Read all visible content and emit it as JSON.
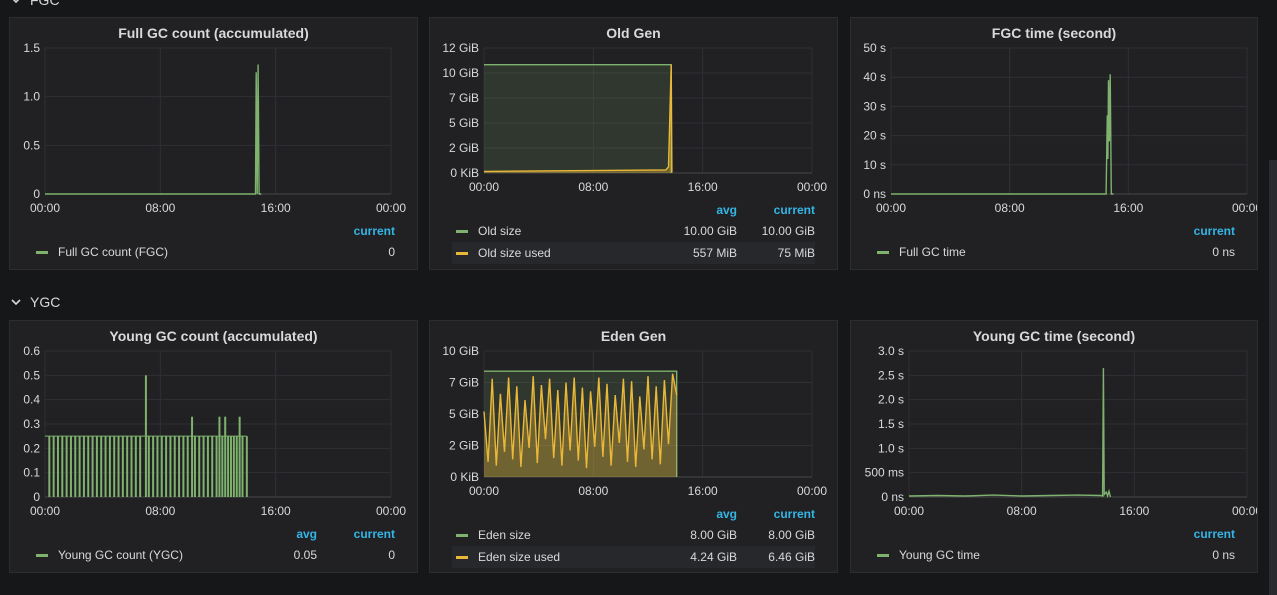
{
  "rows": [
    {
      "title": "FGC"
    },
    {
      "title": "YGC"
    }
  ],
  "colors": {
    "green": "#7eb26d",
    "yellow": "#eab839",
    "accent": "#33b5e5"
  },
  "x_ticks": [
    "00:00",
    "08:00",
    "16:00",
    "00:00"
  ],
  "panels": {
    "fgc_count": {
      "title": "Full GC count (accumulated)",
      "y_ticks": [
        "1.5",
        "1.0",
        "0.5",
        "0"
      ],
      "legend": {
        "headers": [
          "current"
        ],
        "rows": [
          {
            "name": "Full GC count (FGC)",
            "values": [
              "0"
            ],
            "color": "#7eb26d"
          }
        ]
      }
    },
    "old_gen": {
      "title": "Old Gen",
      "y_ticks": [
        "12 GiB",
        "10 GiB",
        "7 GiB",
        "5 GiB",
        "2 GiB",
        "0 KiB"
      ],
      "legend": {
        "headers": [
          "avg",
          "current"
        ],
        "rows": [
          {
            "name": "Old size",
            "values": [
              "10.00 GiB",
              "10.00 GiB"
            ],
            "color": "#7eb26d"
          },
          {
            "name": "Old size used",
            "values": [
              "557 MiB",
              "75 MiB"
            ],
            "color": "#eab839"
          }
        ]
      }
    },
    "fgc_time": {
      "title": "FGC time (second)",
      "y_ticks": [
        "50 s",
        "40 s",
        "30 s",
        "20 s",
        "10 s",
        "0 ns"
      ],
      "legend": {
        "headers": [
          "current"
        ],
        "rows": [
          {
            "name": "Full GC time",
            "values": [
              "0 ns"
            ],
            "color": "#7eb26d"
          }
        ]
      }
    },
    "ygc_count": {
      "title": "Young GC count (accumulated)",
      "y_ticks": [
        "0.6",
        "0.5",
        "0.4",
        "0.3",
        "0.2",
        "0.1",
        "0"
      ],
      "legend": {
        "headers": [
          "avg",
          "current"
        ],
        "rows": [
          {
            "name": "Young GC count (YGC)",
            "values": [
              "0.05",
              "0"
            ],
            "color": "#7eb26d"
          }
        ]
      }
    },
    "eden_gen": {
      "title": "Eden Gen",
      "y_ticks": [
        "10 GiB",
        "7 GiB",
        "5 GiB",
        "2 GiB",
        "0 KiB"
      ],
      "legend": {
        "headers": [
          "avg",
          "current"
        ],
        "rows": [
          {
            "name": "Eden size",
            "values": [
              "8.00 GiB",
              "8.00 GiB"
            ],
            "color": "#7eb26d"
          },
          {
            "name": "Eden size used",
            "values": [
              "4.24 GiB",
              "6.46 GiB"
            ],
            "color": "#eab839"
          }
        ]
      }
    },
    "ygc_time": {
      "title": "Young GC time (second)",
      "y_ticks": [
        "3.0 s",
        "2.5 s",
        "2.0 s",
        "1.5 s",
        "1.0 s",
        "500 ms",
        "0 ns"
      ],
      "legend": {
        "headers": [
          "current"
        ],
        "rows": [
          {
            "name": "Young GC time",
            "values": [
              "0 ns"
            ],
            "color": "#7eb26d"
          }
        ]
      }
    }
  },
  "chart_data": [
    {
      "id": "fgc_count",
      "type": "line",
      "title": "Full GC count (accumulated)",
      "ylim": [
        0,
        1.5
      ],
      "x_hours": [
        0,
        8,
        16,
        24
      ],
      "series": [
        {
          "name": "Full GC count (FGC)",
          "color": "#7eb26d",
          "points": [
            [
              0,
              0
            ],
            [
              14.6,
              0
            ],
            [
              14.65,
              1.25
            ],
            [
              14.72,
              0
            ],
            [
              14.78,
              1.33
            ],
            [
              14.85,
              0
            ],
            [
              15.0,
              0
            ]
          ]
        }
      ]
    },
    {
      "id": "old_gen",
      "type": "area",
      "title": "Old Gen",
      "ylim": [
        0,
        12
      ],
      "x_hours": [
        0,
        8,
        16,
        24
      ],
      "series": [
        {
          "name": "Old size",
          "color": "#7eb26d",
          "fill": true,
          "points": [
            [
              0,
              10.4
            ],
            [
              13.7,
              10.4
            ],
            [
              13.7,
              0
            ]
          ]
        },
        {
          "name": "Old size used",
          "color": "#eab839",
          "points": [
            [
              0,
              0.15
            ],
            [
              13.3,
              0.3
            ],
            [
              13.5,
              0.6
            ],
            [
              13.7,
              10.4
            ],
            [
              13.75,
              0.05
            ]
          ]
        }
      ]
    },
    {
      "id": "fgc_time",
      "type": "line",
      "title": "FGC time (second)",
      "ylim": [
        0,
        50
      ],
      "x_hours": [
        0,
        8,
        16,
        24
      ],
      "series": [
        {
          "name": "Full GC time",
          "color": "#7eb26d",
          "points": [
            [
              0,
              0
            ],
            [
              14.5,
              0
            ],
            [
              14.58,
              27
            ],
            [
              14.62,
              12
            ],
            [
              14.66,
              39
            ],
            [
              14.72,
              18
            ],
            [
              14.78,
              41
            ],
            [
              14.85,
              0
            ],
            [
              15.0,
              0
            ]
          ]
        }
      ]
    },
    {
      "id": "ygc_count",
      "type": "bar",
      "title": "Young GC count (accumulated)",
      "ylim": [
        0,
        0.6
      ],
      "x_hours": [
        0,
        8,
        16,
        24
      ],
      "series": [
        {
          "name": "Young GC count (YGC)",
          "color": "#7eb26d",
          "points": [
            [
              0.3,
              0.25
            ],
            [
              0.6,
              0.25
            ],
            [
              0.9,
              0.25
            ],
            [
              1.2,
              0.25
            ],
            [
              1.5,
              0.25
            ],
            [
              1.8,
              0.25
            ],
            [
              2.1,
              0.25
            ],
            [
              2.4,
              0.25
            ],
            [
              2.7,
              0.25
            ],
            [
              3.0,
              0.25
            ],
            [
              3.3,
              0.25
            ],
            [
              3.6,
              0.25
            ],
            [
              3.9,
              0.25
            ],
            [
              4.2,
              0.25
            ],
            [
              4.5,
              0.25
            ],
            [
              4.8,
              0.25
            ],
            [
              5.1,
              0.25
            ],
            [
              5.4,
              0.25
            ],
            [
              5.7,
              0.25
            ],
            [
              6.0,
              0.25
            ],
            [
              6.3,
              0.25
            ],
            [
              6.6,
              0.25
            ],
            [
              7.0,
              0.5
            ],
            [
              7.2,
              0.25
            ],
            [
              7.5,
              0.25
            ],
            [
              7.8,
              0.25
            ],
            [
              8.1,
              0.25
            ],
            [
              8.4,
              0.25
            ],
            [
              8.7,
              0.25
            ],
            [
              9.0,
              0.25
            ],
            [
              9.3,
              0.25
            ],
            [
              9.6,
              0.25
            ],
            [
              9.9,
              0.25
            ],
            [
              10.2,
              0.33
            ],
            [
              10.4,
              0.25
            ],
            [
              10.7,
              0.25
            ],
            [
              11.0,
              0.25
            ],
            [
              11.3,
              0.25
            ],
            [
              11.6,
              0.25
            ],
            [
              11.9,
              0.25
            ],
            [
              12.1,
              0.33
            ],
            [
              12.3,
              0.25
            ],
            [
              12.5,
              0.33
            ],
            [
              12.7,
              0.25
            ],
            [
              12.9,
              0.25
            ],
            [
              13.1,
              0.25
            ],
            [
              13.3,
              0.25
            ],
            [
              13.5,
              0.33
            ],
            [
              13.7,
              0.25
            ],
            [
              14.0,
              0.25
            ]
          ]
        }
      ]
    },
    {
      "id": "eden_gen",
      "type": "area",
      "title": "Eden Gen",
      "ylim": [
        0,
        10
      ],
      "x_hours": [
        0,
        8,
        16,
        24
      ],
      "series": [
        {
          "name": "Eden size",
          "color": "#7eb26d",
          "fill": true,
          "points": [
            [
              0,
              8.4
            ],
            [
              14.1,
              8.4
            ],
            [
              14.1,
              0
            ]
          ]
        },
        {
          "name": "Eden size used",
          "color": "#eab839",
          "points": [
            [
              0,
              5.2
            ],
            [
              0.3,
              1.2
            ],
            [
              0.6,
              7.8
            ],
            [
              0.9,
              0.9
            ],
            [
              1.2,
              6.6
            ],
            [
              1.5,
              2.0
            ],
            [
              1.8,
              7.9
            ],
            [
              2.1,
              1.4
            ],
            [
              2.4,
              7.2
            ],
            [
              2.7,
              0.8
            ],
            [
              3.0,
              6.1
            ],
            [
              3.3,
              2.3
            ],
            [
              3.6,
              8.0
            ],
            [
              3.9,
              1.1
            ],
            [
              4.2,
              7.3
            ],
            [
              4.5,
              3.0
            ],
            [
              4.8,
              7.8
            ],
            [
              5.1,
              1.5
            ],
            [
              5.4,
              6.9
            ],
            [
              5.7,
              0.9
            ],
            [
              6.0,
              7.5
            ],
            [
              6.3,
              2.1
            ],
            [
              6.6,
              7.9
            ],
            [
              6.9,
              1.3
            ],
            [
              7.2,
              7.1
            ],
            [
              7.5,
              0.7
            ],
            [
              7.8,
              6.8
            ],
            [
              8.1,
              2.4
            ],
            [
              8.4,
              7.9
            ],
            [
              8.7,
              1.6
            ],
            [
              9.0,
              7.4
            ],
            [
              9.3,
              0.9
            ],
            [
              9.6,
              6.5
            ],
            [
              9.9,
              2.7
            ],
            [
              10.2,
              7.8
            ],
            [
              10.5,
              1.2
            ],
            [
              10.8,
              7.6
            ],
            [
              11.1,
              0.8
            ],
            [
              11.4,
              6.4
            ],
            [
              11.7,
              2.2
            ],
            [
              12.0,
              8.0
            ],
            [
              12.3,
              1.4
            ],
            [
              12.6,
              7.2
            ],
            [
              12.9,
              1.0
            ],
            [
              13.2,
              7.7
            ],
            [
              13.5,
              2.6
            ],
            [
              13.8,
              8.2
            ],
            [
              14.1,
              6.5
            ]
          ]
        }
      ]
    },
    {
      "id": "ygc_time",
      "type": "line",
      "title": "Young GC time (second)",
      "ylim": [
        0,
        3.0
      ],
      "x_hours": [
        0,
        8,
        16,
        24
      ],
      "series": [
        {
          "name": "Young GC time",
          "color": "#7eb26d",
          "points": [
            [
              0,
              0.02
            ],
            [
              2,
              0.03
            ],
            [
              4,
              0.02
            ],
            [
              6,
              0.04
            ],
            [
              8,
              0.02
            ],
            [
              10,
              0.03
            ],
            [
              12,
              0.04
            ],
            [
              13.6,
              0.03
            ],
            [
              13.75,
              0.02
            ],
            [
              13.8,
              2.65
            ],
            [
              13.86,
              0.05
            ],
            [
              14.0,
              0.1
            ],
            [
              14.1,
              0.02
            ],
            [
              14.2,
              0.12
            ],
            [
              14.3,
              0.0
            ]
          ]
        }
      ]
    }
  ]
}
